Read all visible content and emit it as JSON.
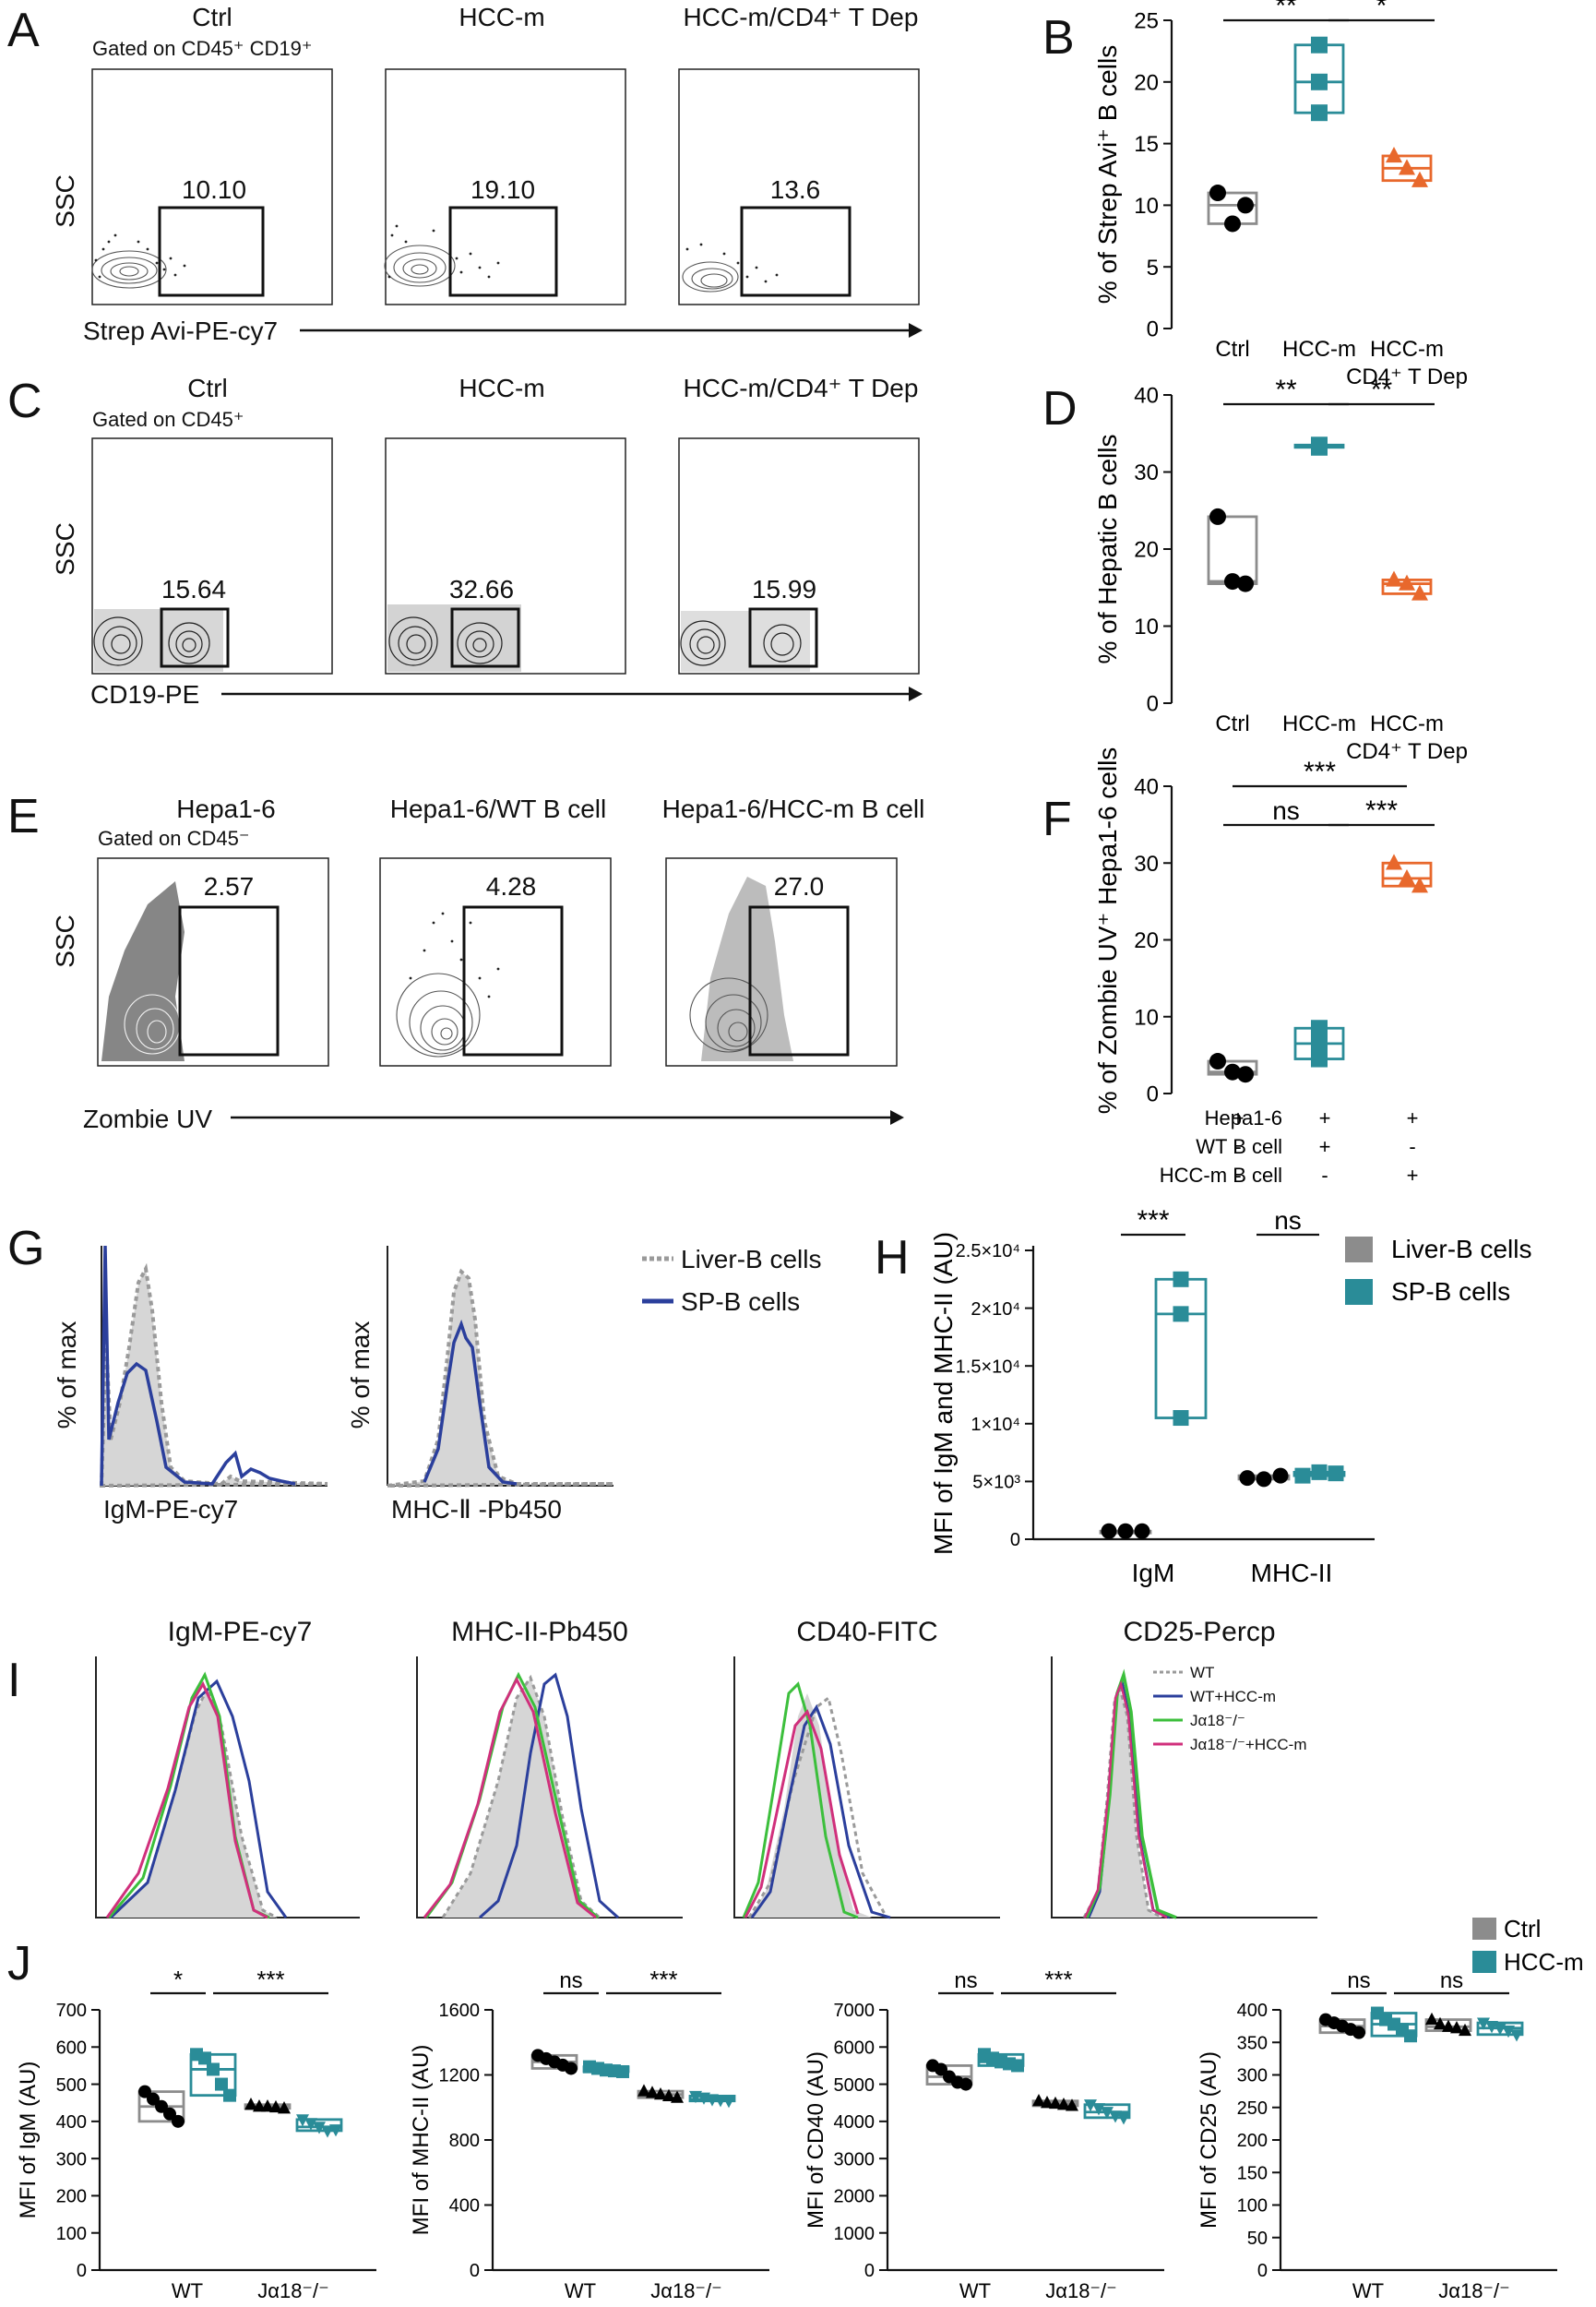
{
  "panel_letters": [
    "A",
    "B",
    "C",
    "D",
    "E",
    "F",
    "G",
    "H",
    "I",
    "J"
  ],
  "colors": {
    "ctrl": "#8c8c8c",
    "hccm": "#2a8c98",
    "dep": "#e8682c",
    "black": "#000000",
    "navy": "#2b3f9c",
    "green": "#3cbf3c",
    "magenta": "#d0307c",
    "dotgray": "#9a9a9a"
  },
  "panelA": {
    "titles": [
      "Ctrl",
      "HCC-m",
      "HCC-m/CD4⁺ T Dep"
    ],
    "gate": "Gated on CD45⁺ CD19⁺",
    "values": [
      "10.10",
      "19.10",
      "13.6"
    ],
    "ylabel": "SSC",
    "xlabel": "Strep Avi-PE-cy7"
  },
  "panelC": {
    "titles": [
      "Ctrl",
      "HCC-m",
      "HCC-m/CD4⁺ T Dep"
    ],
    "gate": "Gated on CD45⁺",
    "values": [
      "15.64",
      "32.66",
      "15.99"
    ],
    "ylabel": "SSC",
    "xlabel": "CD19-PE"
  },
  "panelE": {
    "titles": [
      "Hepa1-6",
      "Hepa1-6/WT B cell",
      "Hepa1-6/HCC-m B cell"
    ],
    "gate": "Gated on CD45⁻",
    "values": [
      "2.57",
      "4.28",
      "27.0"
    ],
    "ylabel": "SSC",
    "xlabel": "Zombie UV"
  },
  "panelG": {
    "legend": [
      "Liver-B cells",
      "SP-B cells"
    ],
    "ylabel": "% of max",
    "xlabels": [
      "IgM-PE-cy7",
      "MHC-Ⅱ -Pb450"
    ]
  },
  "panelI": {
    "titles": [
      "IgM-PE-cy7",
      "MHC-II-Pb450",
      "CD40-FITC",
      "CD25-Percp"
    ],
    "legend": [
      "WT",
      "WT+HCC-m",
      "Jα18⁻/⁻",
      "Jα18⁻/⁻+HCC-m"
    ]
  },
  "chart_data": [
    {
      "id": "B",
      "type": "box",
      "ylabel": "% of Strep Avi⁺ B cells",
      "ylim": [
        0,
        25
      ],
      "yticks": [
        0,
        5,
        10,
        15,
        20,
        25
      ],
      "categories": [
        "Ctrl",
        "HCC-m",
        "HCC-m\nCD4⁺ T Dep"
      ],
      "points": [
        [
          11,
          10,
          8.5
        ],
        [
          23,
          20,
          17.5
        ],
        [
          14,
          13,
          12
        ]
      ],
      "sig": [
        {
          "label": "**",
          "from": 0,
          "to": 1
        },
        {
          "label": "*",
          "from": 1,
          "to": 2
        }
      ]
    },
    {
      "id": "D",
      "type": "box",
      "ylabel": "% of Hepatic B cells",
      "ylim": [
        0,
        40
      ],
      "yticks": [
        0,
        10,
        20,
        30,
        40
      ],
      "categories": [
        "Ctrl",
        "HCC-m",
        "HCC-m\nCD4⁺ T Dep"
      ],
      "points": [
        [
          24.2,
          15.5,
          15.8
        ],
        [
          33.3,
          33.5,
          33.2
        ],
        [
          16,
          15.5,
          14.2
        ]
      ],
      "sig": [
        {
          "label": "**",
          "from": 0,
          "to": 1
        },
        {
          "label": "**",
          "from": 1,
          "to": 2
        }
      ]
    },
    {
      "id": "F",
      "type": "box",
      "ylabel": "% of Zombie UV⁺ Hepa1-6 cells",
      "ylim": [
        0,
        40
      ],
      "yticks": [
        0,
        10,
        20,
        30,
        40
      ],
      "categories": [
        "",
        "",
        ""
      ],
      "points": [
        [
          4.2,
          2.5,
          2.8
        ],
        [
          8.5,
          6.5,
          4.5
        ],
        [
          30,
          28,
          27
        ]
      ],
      "sig": [
        {
          "label": "ns",
          "from": 0,
          "to": 1
        },
        {
          "label": "***",
          "from": 1,
          "to": 2
        },
        {
          "label": "***",
          "from": 0,
          "to": 2
        }
      ],
      "table_rows": [
        {
          "label": "Hepa1-6",
          "cells": [
            "+",
            "+",
            "+"
          ]
        },
        {
          "label": "WT B cell",
          "cells": [
            "-",
            "+",
            "-"
          ]
        },
        {
          "label": "HCC-m B cell",
          "cells": [
            "-",
            "-",
            "+"
          ]
        }
      ]
    },
    {
      "id": "H",
      "type": "box",
      "ylabel": "MFI of IgM and MHC-II (AU)",
      "ylim": [
        0,
        25000
      ],
      "ytick_values": [
        0,
        5000,
        10000,
        15000,
        20000,
        25000
      ],
      "ytick_labels": [
        "0",
        "5×10³",
        "1×10⁴",
        "1.5×10⁴",
        "2×10⁴",
        "2.5×10⁴"
      ],
      "categories": [
        "IgM",
        "MHC-II"
      ],
      "series": [
        {
          "name": "Liver-B cells",
          "values": [
            [
              700,
              700,
              700
            ],
            [
              5300,
              5200,
              5500
            ]
          ]
        },
        {
          "name": "SP-B cells",
          "values": [
            [
              22500,
              19500,
              10500
            ],
            [
              5500,
              5800,
              5700
            ]
          ]
        }
      ],
      "sig": [
        {
          "label": "***",
          "group": 0
        },
        {
          "label": "ns",
          "group": 1
        }
      ],
      "legend": [
        "Liver-B cells",
        "SP-B cells"
      ]
    },
    {
      "id": "J1",
      "type": "box",
      "ylabel": "MFI of IgM (AU)",
      "ylim": [
        0,
        700
      ],
      "yticks": [
        0,
        100,
        200,
        300,
        400,
        500,
        600,
        700
      ],
      "categories": [
        "WT",
        "Jα18⁻/⁻"
      ],
      "series": [
        {
          "name": "Ctrl",
          "values": [
            [
              480,
              460,
              440,
              420,
              400
            ],
            [
              445,
              440,
              440,
              438,
              435
            ]
          ]
        },
        {
          "name": "HCC-m",
          "values": [
            [
              580,
              570,
              540,
              500,
              470
            ],
            [
              405,
              395,
              385,
              375,
              378
            ]
          ]
        }
      ],
      "sig": [
        {
          "label": "*",
          "span": "wt"
        },
        {
          "label": "***",
          "span": "cross"
        }
      ]
    },
    {
      "id": "J2",
      "type": "box",
      "ylabel": "MFI of MHC-II (AU)",
      "ylim": [
        0,
        1600
      ],
      "yticks": [
        0,
        400,
        800,
        1200,
        1600
      ],
      "categories": [
        "WT",
        "Jα18⁻/⁻"
      ],
      "series": [
        {
          "name": "Ctrl",
          "values": [
            [
              1320,
              1300,
              1280,
              1260,
              1240
            ],
            [
              1100,
              1090,
              1080,
              1070,
              1060
            ]
          ]
        },
        {
          "name": "HCC-m",
          "values": [
            [
              1250,
              1240,
              1230,
              1225,
              1220
            ],
            [
              1070,
              1060,
              1050,
              1045,
              1040
            ]
          ]
        }
      ],
      "sig": [
        {
          "label": "ns",
          "span": "wt"
        },
        {
          "label": "***",
          "span": "cross"
        }
      ]
    },
    {
      "id": "J3",
      "type": "box",
      "ylabel": "MFI of CD40 (AU)",
      "ylim": [
        0,
        7000
      ],
      "yticks": [
        0,
        1000,
        2000,
        3000,
        4000,
        5000,
        6000,
        7000
      ],
      "categories": [
        "WT",
        "Jα18⁻/⁻"
      ],
      "series": [
        {
          "name": "Ctrl",
          "values": [
            [
              5500,
              5400,
              5200,
              5050,
              5000
            ],
            [
              4550,
              4500,
              4480,
              4450,
              4420
            ]
          ]
        },
        {
          "name": "HCC-m",
          "values": [
            [
              5800,
              5700,
              5600,
              5550,
              5500
            ],
            [
              4450,
              4350,
              4250,
              4150,
              4100
            ]
          ]
        }
      ],
      "sig": [
        {
          "label": "ns",
          "span": "wt"
        },
        {
          "label": "***",
          "span": "cross"
        }
      ]
    },
    {
      "id": "J4",
      "type": "box",
      "ylabel": "MFI of CD25 (AU)",
      "ylim": [
        0,
        400
      ],
      "yticks": [
        0,
        50,
        100,
        150,
        200,
        250,
        300,
        350,
        400
      ],
      "categories": [
        "WT",
        "Jα18⁻/⁻"
      ],
      "series": [
        {
          "name": "Ctrl",
          "values": [
            [
              385,
              380,
              375,
              370,
              365
            ],
            [
              385,
              378,
              374,
              372,
              368
            ]
          ]
        },
        {
          "name": "HCC-m",
          "values": [
            [
              395,
              385,
              378,
              370,
              360
            ],
            [
              380,
              375,
              372,
              368,
              362
            ]
          ]
        }
      ],
      "sig": [
        {
          "label": "ns",
          "span": "wt"
        },
        {
          "label": "ns",
          "span": "cross"
        }
      ],
      "legend": [
        "Ctrl",
        "HCC-m"
      ]
    }
  ]
}
